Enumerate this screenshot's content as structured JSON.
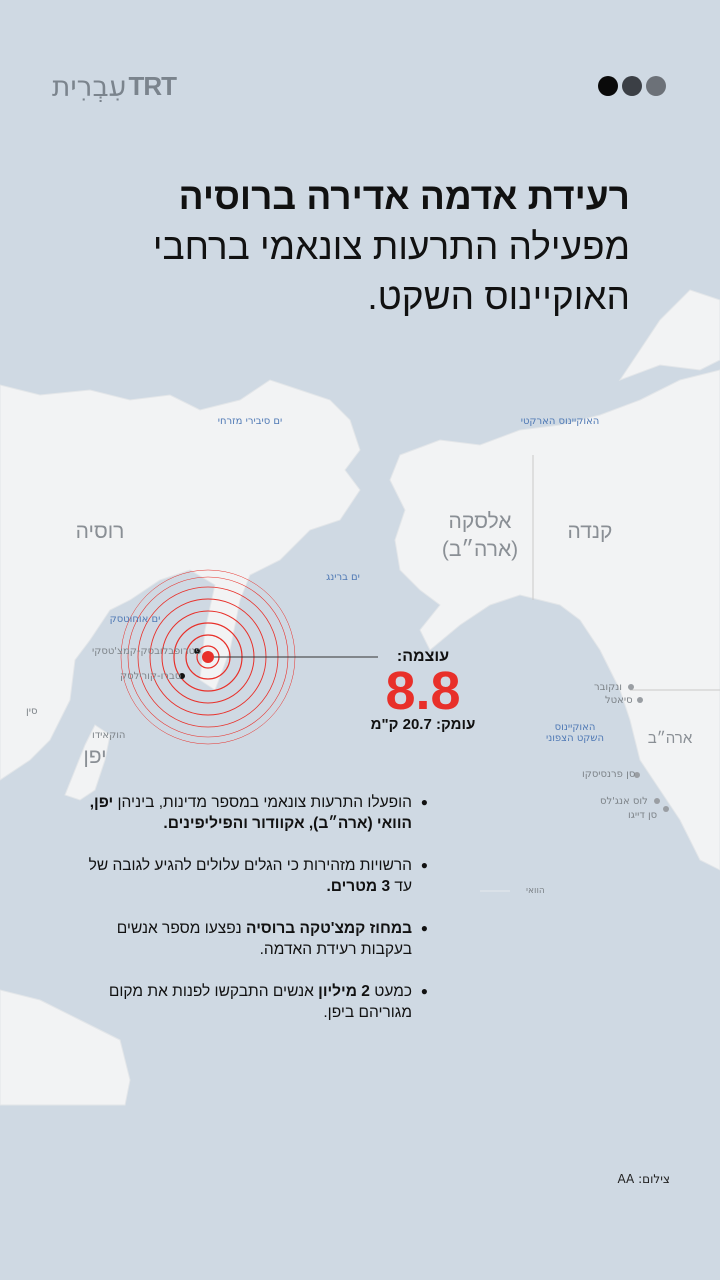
{
  "header": {
    "logo_brand": "TRT",
    "logo_lang": "עִבְרִית",
    "dot_colors": [
      "#0a0a0a",
      "#3b3f45",
      "#6c7178"
    ]
  },
  "title": {
    "line_bold": "רעידת אדמה אדירה ברוסיה",
    "line_rest": "מפעילה התרעות צונאמי ברחבי האוקיינוס השקט."
  },
  "map": {
    "countries": {
      "russia": "רוסיה",
      "alaska": "אלסקה",
      "alaska_sub": "(ארה״ב)",
      "canada": "קנדה",
      "usa": "ארה״ב",
      "japan": "יפן",
      "china": "סין"
    },
    "seas": {
      "east_siberian": "ים סיבירי מזרחי",
      "arctic": "האוקיינוס הארקטי",
      "bering": "ים ברינג",
      "okhotsk": "ים אוחוטסק",
      "north_pacific": "האוקיינוס השקט הצפוני"
    },
    "places": {
      "petropavlovsk": "פטרופבלובסק-קמצ'טסקי",
      "severo": "סברו-קורילסק",
      "hokkaido": "הוקאידו",
      "vancouver": "ונקובר",
      "seattle": "סיאטל",
      "san_francisco": "סן פרנסיסקו",
      "los_angeles": "לוס אנג'לס",
      "san_diego": "סן דייגו",
      "hawaii": "הוואי"
    },
    "epicenter_color": "#e8302a"
  },
  "quake": {
    "magnitude_label": "עוצמה:",
    "magnitude": "8.8",
    "depth": "עומק: 20.7 ק\"מ"
  },
  "bullets": [
    {
      "text": "הופעלו התרעות צונאמי במספר מדינות, ביניהן ",
      "bold": "יפן, הוואי (ארה״ב), אקוודור והפיליפינים."
    },
    {
      "text": "הרשויות מזהירות כי הגלים עלולים להגיע לגובה של עד ",
      "bold": "3 מטרים."
    },
    {
      "bold": "במחוז קמצ'טקה ברוסיה",
      "text": " נפצעו מספר אנשים בעקבות רעידת האדמה."
    },
    {
      "text": "כמעט ",
      "bold": "2 מיליון",
      "text2": " אנשים התבקשו לפנות את מקום מגוריהם ביפן."
    }
  ],
  "credit": "צילום: AA"
}
